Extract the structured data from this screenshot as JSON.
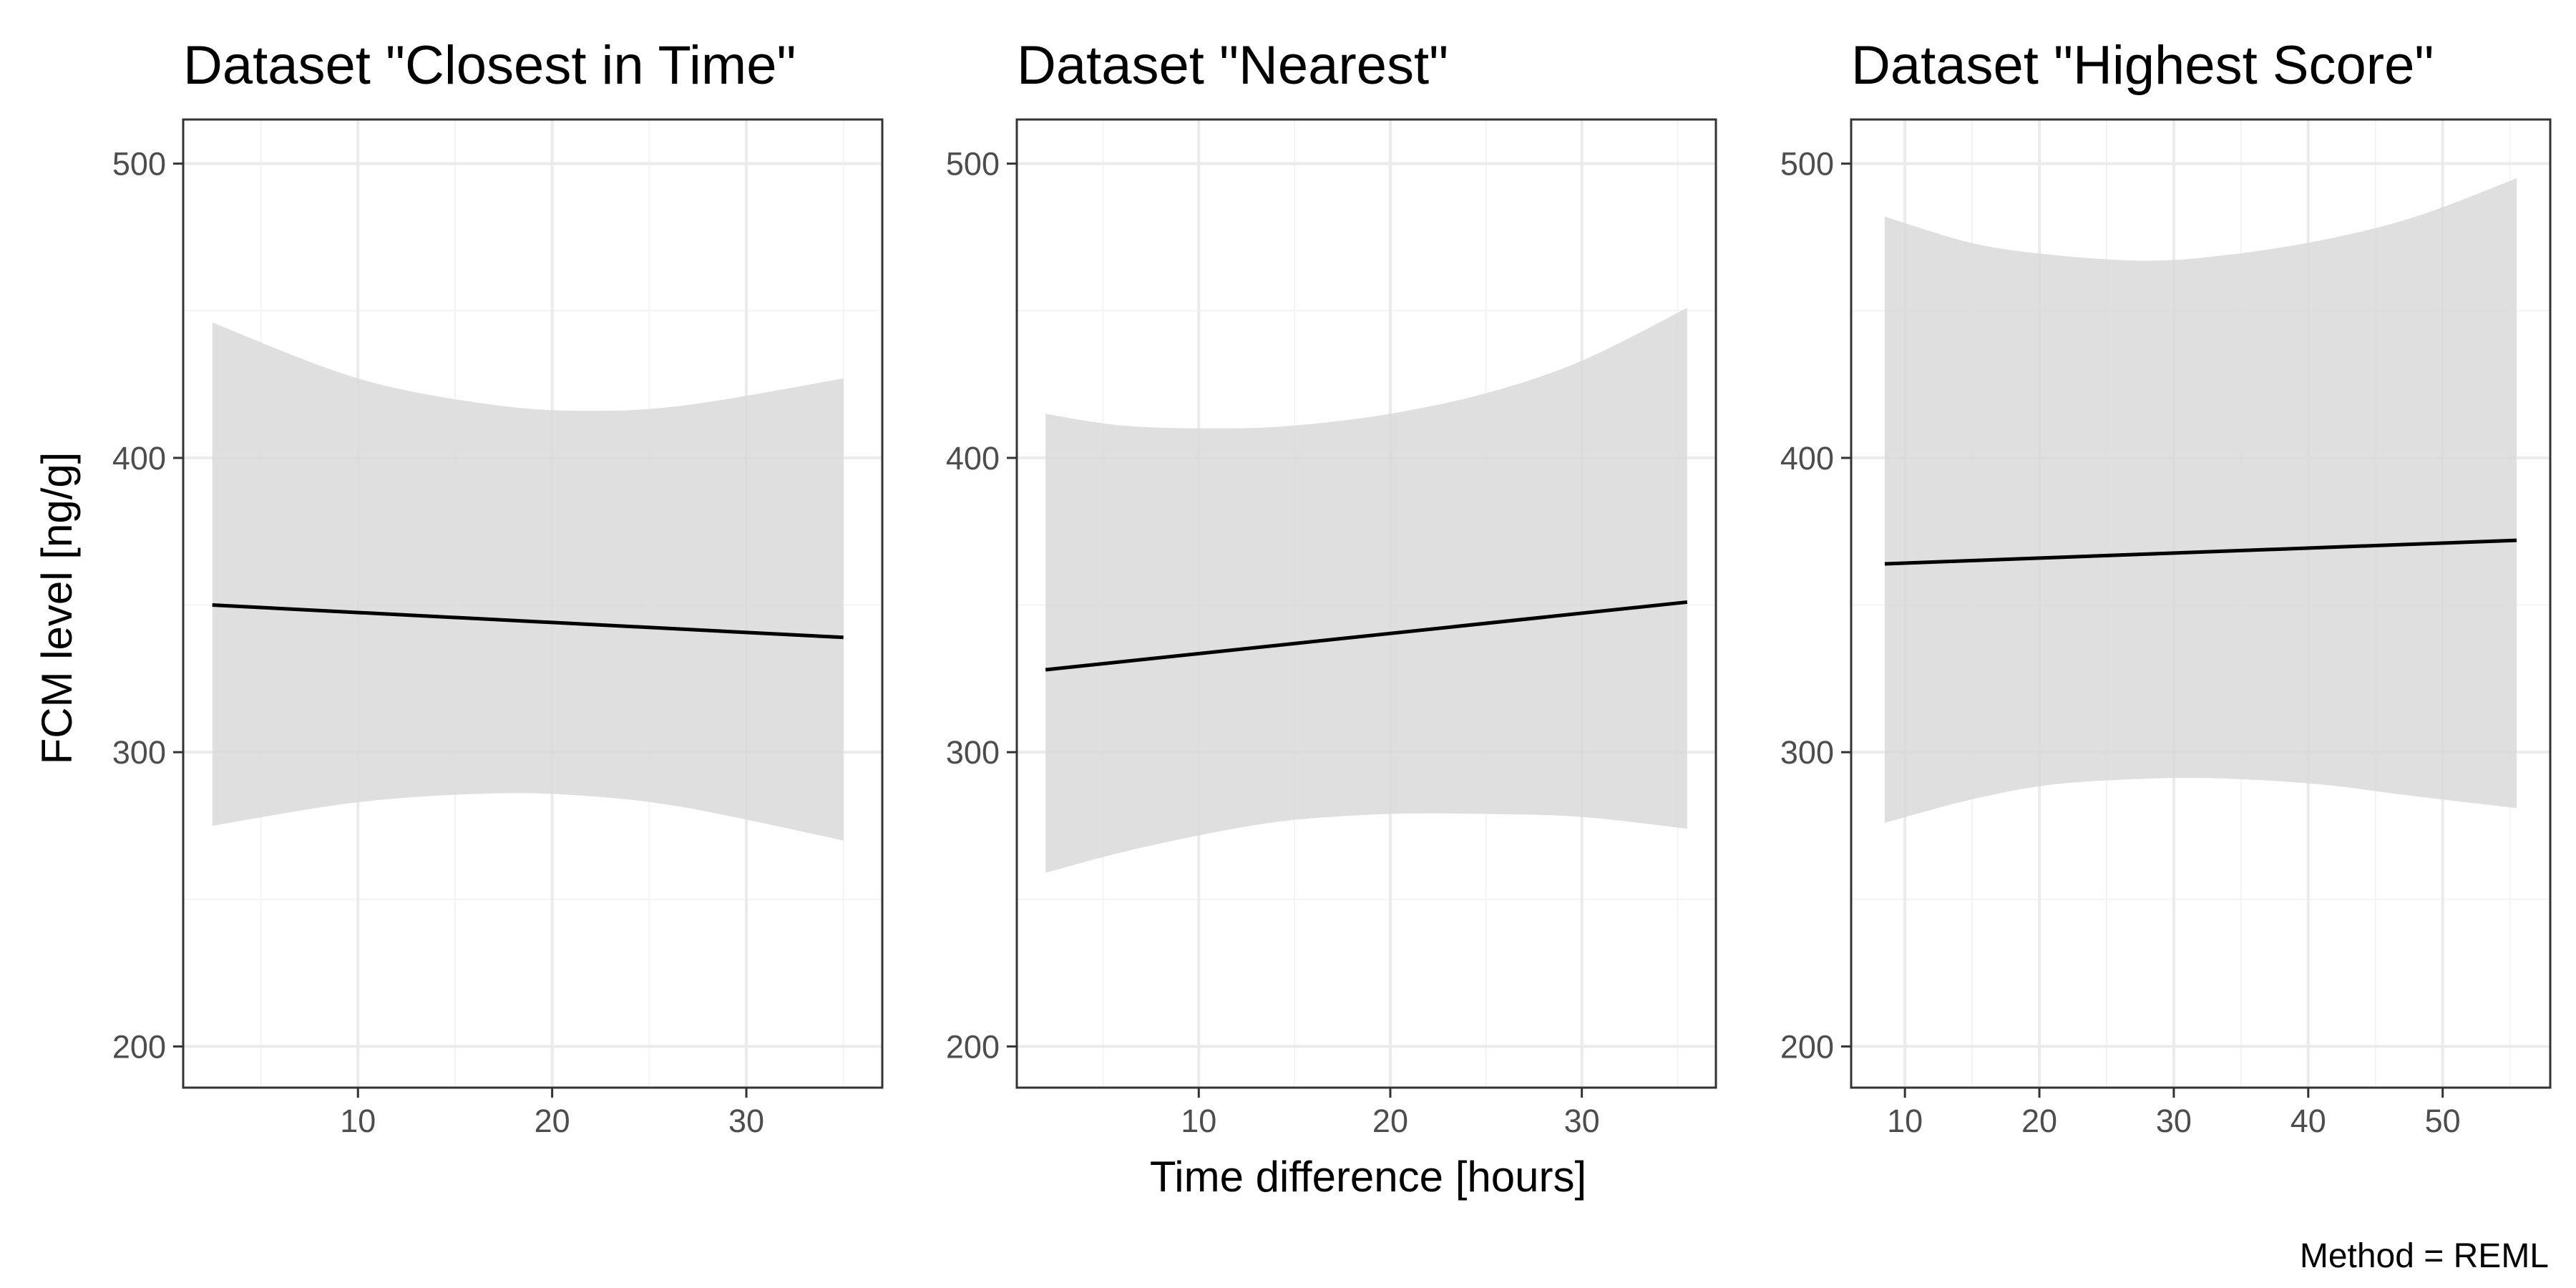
{
  "chart_data": [
    {
      "type": "line",
      "title": "Dataset \"Closest in Time\"",
      "xlim": [
        1.0,
        37.0
      ],
      "ylim": [
        186,
        515
      ],
      "xticks": [
        10,
        20,
        30
      ],
      "yticks": [
        200,
        300,
        400,
        500
      ],
      "x": [
        2.5,
        35.0
      ],
      "series": [
        {
          "fit": [
            350,
            339
          ],
          "ribbon_x": [
            2.5,
            10,
            17,
            22,
            27,
            35
          ],
          "ribbon_upper": [
            446,
            427,
            418,
            416,
            418,
            427
          ],
          "ribbon_lower": [
            275,
            283,
            286,
            285,
            281,
            270
          ]
        }
      ]
    },
    {
      "type": "line",
      "title": "Dataset \"Nearest\"",
      "xlim": [
        0.5,
        37.0
      ],
      "ylim": [
        186,
        515
      ],
      "xticks": [
        10,
        20,
        30
      ],
      "yticks": [
        200,
        300,
        400,
        500
      ],
      "x": [
        2.0,
        35.5
      ],
      "series": [
        {
          "fit": [
            328,
            351
          ],
          "ribbon_x": [
            2,
            6,
            11,
            15,
            20,
            25,
            30,
            35.5
          ],
          "ribbon_upper": [
            415,
            411,
            410,
            411,
            415,
            422,
            433,
            451
          ],
          "ribbon_lower": [
            259,
            266,
            273,
            277,
            279,
            279,
            278,
            274
          ]
        }
      ]
    },
    {
      "type": "line",
      "title": "Dataset \"Highest Score\"",
      "xlim": [
        6.0,
        58.0
      ],
      "ylim": [
        186,
        515
      ],
      "xticks": [
        10,
        20,
        30,
        40,
        50
      ],
      "yticks": [
        200,
        300,
        400,
        500
      ],
      "x": [
        8.5,
        55.5
      ],
      "series": [
        {
          "fit": [
            364,
            372
          ],
          "ribbon_x": [
            8.5,
            15,
            21,
            28,
            34,
            41,
            48,
            55.5
          ],
          "ribbon_upper": [
            482,
            473,
            469,
            467,
            469,
            474,
            482,
            495
          ],
          "ribbon_lower": [
            276,
            284,
            289,
            291,
            291,
            289,
            285,
            281
          ]
        }
      ]
    }
  ],
  "axes": {
    "ylabel": "FCM level [ng/g]",
    "xlabel": "Time difference [hours]"
  },
  "caption": "Method = REML",
  "colors": {
    "ribbon": "#d9d9d9",
    "fit_line": "#000000",
    "grid_major": "#ebebeb",
    "grid_minor": "#f4f4f4",
    "panel_border": "#333333",
    "tick": "#333333"
  }
}
